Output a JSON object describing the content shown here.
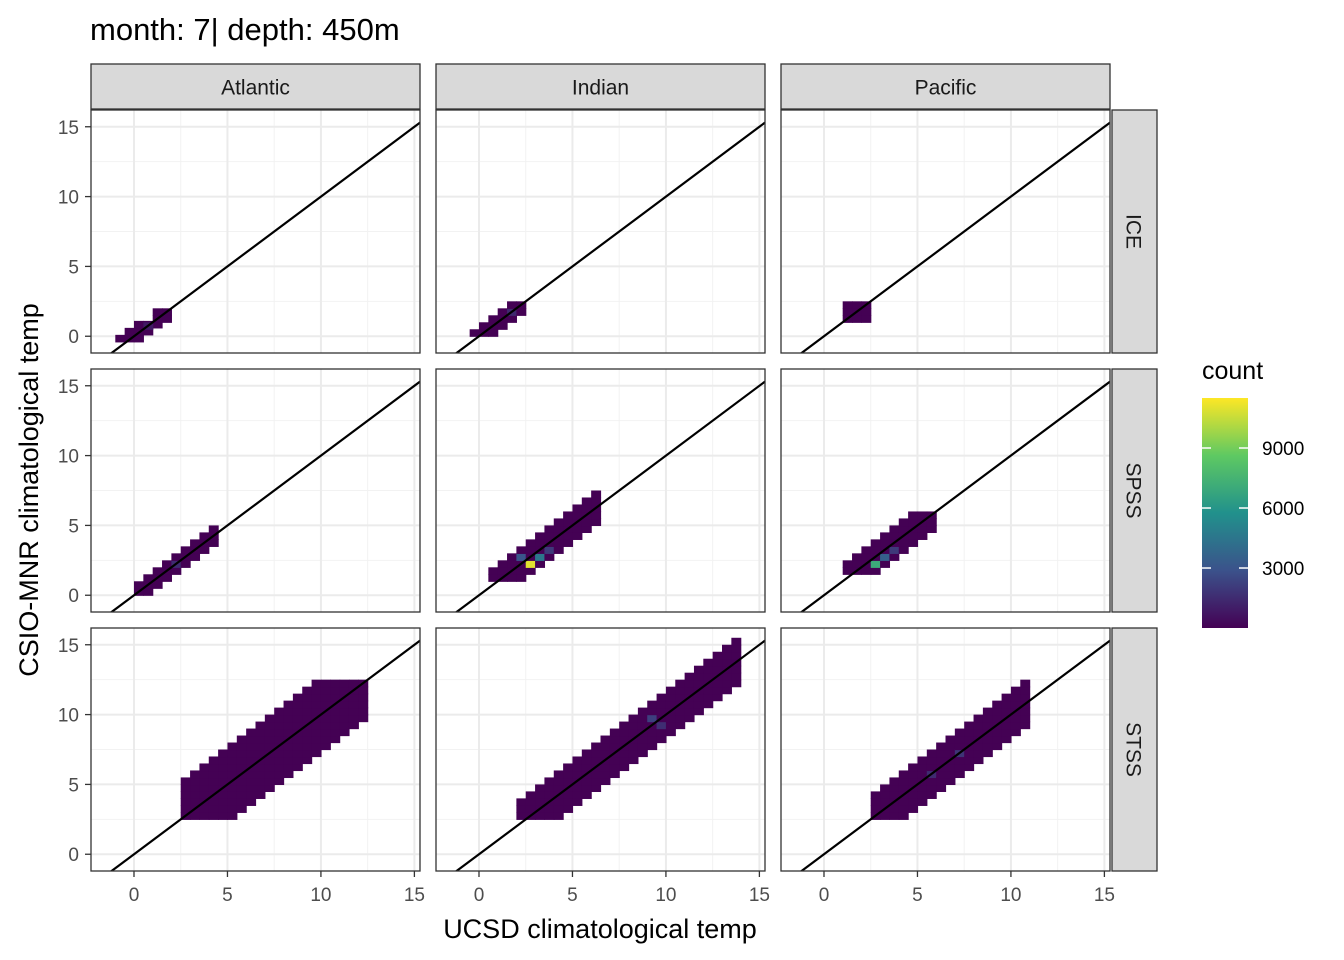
{
  "chart_data": {
    "type": "heatmap",
    "title": "month: 7| depth: 450m",
    "xlabel": "UCSD climatological temp",
    "ylabel": "CSIO-MNR climatological temp",
    "xlim": [
      -2.3,
      15.3
    ],
    "ylim": [
      -1.2,
      16.2
    ],
    "x_ticks": [
      0,
      5,
      10,
      15
    ],
    "y_ticks": [
      0,
      5,
      10,
      15
    ],
    "grid": true,
    "reference_line": {
      "slope": 1,
      "intercept": 0
    },
    "columns": [
      "Atlantic",
      "Indian",
      "Pacific"
    ],
    "rows": [
      "ICE",
      "SPSS",
      "STSS"
    ],
    "legend": {
      "title": "count",
      "position": "right",
      "ticks": [
        3000,
        6000,
        9000
      ],
      "range": [
        1,
        11500
      ],
      "colors": [
        "#440154",
        "#3b528b",
        "#21918c",
        "#5ec962",
        "#fde725"
      ]
    },
    "bin_width": 0.5,
    "panels": [
      {
        "column": "Atlantic",
        "row": "ICE",
        "regions": [
          {
            "x": [
              -1.5,
              2.0
            ],
            "y": [
              -0.4,
              1.0
            ],
            "band": 0.85
          },
          {
            "x": [
              1.0,
              2.0
            ],
            "y": [
              1.0,
              2.0
            ],
            "band": 0.7
          }
        ],
        "hotspots": [
          {
            "x": 0.5,
            "y": 0.5,
            "count": 900
          }
        ]
      },
      {
        "column": "Indian",
        "row": "ICE",
        "regions": [
          {
            "x": [
              -0.5,
              2.5
            ],
            "y": [
              0.0,
              2.5
            ],
            "band": 0.9
          }
        ],
        "hotspots": [
          {
            "x": 1.5,
            "y": 1.5,
            "count": 1400
          }
        ]
      },
      {
        "column": "Pacific",
        "row": "ICE",
        "regions": [
          {
            "x": [
              1.0,
              2.5
            ],
            "y": [
              1.0,
              2.5
            ],
            "band": 1.2
          }
        ],
        "hotspots": []
      },
      {
        "column": "Atlantic",
        "row": "SPSS",
        "regions": [
          {
            "x": [
              0.0,
              4.5
            ],
            "y": [
              0.0,
              5.0
            ],
            "band": 0.8
          }
        ],
        "hotspots": [
          {
            "x": 2.0,
            "y": 2.0,
            "count": 1500
          }
        ]
      },
      {
        "column": "Indian",
        "row": "SPSS",
        "regions": [
          {
            "x": [
              0.5,
              6.5
            ],
            "y": [
              1.0,
              7.5
            ],
            "band": 1.3
          }
        ],
        "hotspots": [
          {
            "x": 2.5,
            "y": 2.0,
            "count": 11000
          },
          {
            "x": 3.0,
            "y": 2.5,
            "count": 4500
          },
          {
            "x": 2.0,
            "y": 2.5,
            "count": 3000
          },
          {
            "x": 3.5,
            "y": 3.0,
            "count": 2000
          }
        ]
      },
      {
        "column": "Pacific",
        "row": "SPSS",
        "regions": [
          {
            "x": [
              1.0,
              6.0
            ],
            "y": [
              1.5,
              6.0
            ],
            "band": 1.2
          }
        ],
        "hotspots": [
          {
            "x": 2.5,
            "y": 2.0,
            "count": 7000
          },
          {
            "x": 3.0,
            "y": 2.5,
            "count": 3500
          },
          {
            "x": 3.5,
            "y": 3.0,
            "count": 2000
          }
        ]
      },
      {
        "column": "Atlantic",
        "row": "STSS",
        "regions": [
          {
            "x": [
              2.5,
              12.5
            ],
            "y": [
              2.5,
              12.5
            ],
            "band": 2.8
          }
        ],
        "hotspots": []
      },
      {
        "column": "Indian",
        "row": "STSS",
        "regions": [
          {
            "x": [
              2.0,
              14.0
            ],
            "y": [
              2.5,
              15.5
            ],
            "band": 1.8
          }
        ],
        "hotspots": [
          {
            "x": 9.0,
            "y": 9.5,
            "count": 2200
          },
          {
            "x": 9.5,
            "y": 9.0,
            "count": 1600
          }
        ]
      },
      {
        "column": "Pacific",
        "row": "STSS",
        "regions": [
          {
            "x": [
              2.5,
              11.0
            ],
            "y": [
              2.5,
              12.5
            ],
            "band": 1.5
          }
        ],
        "hotspots": [
          {
            "x": 7.0,
            "y": 7.0,
            "count": 1800
          },
          {
            "x": 5.5,
            "y": 5.5,
            "count": 1500
          }
        ]
      }
    ]
  }
}
